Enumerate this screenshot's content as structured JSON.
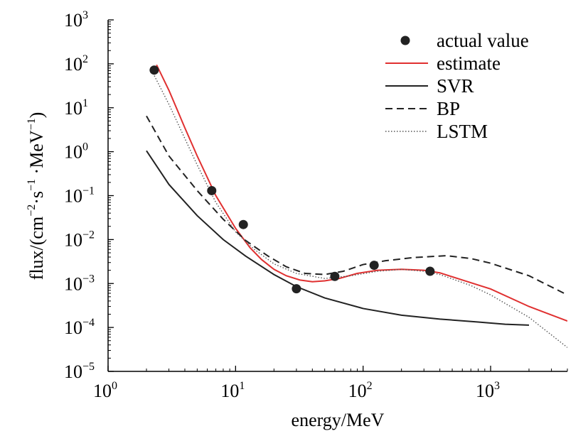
{
  "chart_data": {
    "type": "line",
    "xscale": "log",
    "yscale": "log",
    "xlim": [
      1,
      4000
    ],
    "ylim": [
      1e-05,
      1000
    ],
    "xlabel": "energy/MeV",
    "ylabel": {
      "prefix": "flux/(cm",
      "sup1": "−2",
      "mid1": "·s",
      "sup2": "−1",
      "mid2": " ·MeV",
      "sup3": "−1",
      "suffix": ")"
    },
    "x_ticks": [
      {
        "value": 1,
        "base": "10",
        "exp": "0"
      },
      {
        "value": 10,
        "base": "10",
        "exp": "1"
      },
      {
        "value": 100,
        "base": "10",
        "exp": "2"
      },
      {
        "value": 1000,
        "base": "10",
        "exp": "3"
      }
    ],
    "y_ticks": [
      {
        "value": 1e-05,
        "base": "10",
        "exp": "−5"
      },
      {
        "value": 0.0001,
        "base": "10",
        "exp": "−4"
      },
      {
        "value": 0.001,
        "base": "10",
        "exp": "−3"
      },
      {
        "value": 0.01,
        "base": "10",
        "exp": "−2"
      },
      {
        "value": 0.1,
        "base": "10",
        "exp": "−1"
      },
      {
        "value": 1,
        "base": "10",
        "exp": "0"
      },
      {
        "value": 10,
        "base": "10",
        "exp": "1"
      },
      {
        "value": 100,
        "base": "10",
        "exp": "2"
      },
      {
        "value": 1000,
        "base": "10",
        "exp": "3"
      }
    ],
    "legend_position": "top-right",
    "series": [
      {
        "name": "actual value",
        "kind": "scatter",
        "color": "#222222",
        "points": [
          [
            2.3,
            72
          ],
          [
            6.5,
            0.13
          ],
          [
            11.5,
            0.022
          ],
          [
            30,
            0.00076
          ],
          [
            60,
            0.00145
          ],
          [
            122,
            0.0026
          ],
          [
            335,
            0.0019
          ]
        ]
      },
      {
        "name": "estimate",
        "kind": "line",
        "color": "#e03030",
        "dash": "solid",
        "points": [
          [
            2.4,
            95
          ],
          [
            3,
            25
          ],
          [
            4,
            3.5
          ],
          [
            5,
            0.8
          ],
          [
            7,
            0.1
          ],
          [
            10,
            0.018
          ],
          [
            13,
            0.0065
          ],
          [
            16,
            0.0035
          ],
          [
            20,
            0.0021
          ],
          [
            25,
            0.0015
          ],
          [
            32,
            0.0012
          ],
          [
            40,
            0.0011
          ],
          [
            50,
            0.00115
          ],
          [
            65,
            0.0013
          ],
          [
            90,
            0.0017
          ],
          [
            130,
            0.002
          ],
          [
            200,
            0.0021
          ],
          [
            300,
            0.002
          ],
          [
            400,
            0.00175
          ],
          [
            600,
            0.0012
          ],
          [
            1000,
            0.00075
          ],
          [
            2000,
            0.0003
          ],
          [
            4000,
            0.00014
          ]
        ]
      },
      {
        "name": "SVR",
        "kind": "line",
        "color": "#222222",
        "dash": "solid",
        "points": [
          [
            2,
            1.05
          ],
          [
            3,
            0.18
          ],
          [
            5,
            0.035
          ],
          [
            8,
            0.01
          ],
          [
            12,
            0.0042
          ],
          [
            20,
            0.0016
          ],
          [
            30,
            0.00085
          ],
          [
            50,
            0.00047
          ],
          [
            100,
            0.00027
          ],
          [
            200,
            0.00019
          ],
          [
            400,
            0.000155
          ],
          [
            800,
            0.000133
          ],
          [
            1300,
            0.000118
          ],
          [
            2000,
            0.000113
          ]
        ]
      },
      {
        "name": "BP",
        "kind": "line",
        "color": "#222222",
        "dash": "dashed",
        "points": [
          [
            2,
            6.5
          ],
          [
            3,
            0.8
          ],
          [
            5,
            0.13
          ],
          [
            8,
            0.029
          ],
          [
            12,
            0.0095
          ],
          [
            18,
            0.0042
          ],
          [
            25,
            0.0024
          ],
          [
            35,
            0.0017
          ],
          [
            50,
            0.0016
          ],
          [
            70,
            0.0019
          ],
          [
            100,
            0.0027
          ],
          [
            150,
            0.0033
          ],
          [
            250,
            0.0039
          ],
          [
            450,
            0.0043
          ],
          [
            700,
            0.0037
          ],
          [
            1000,
            0.0029
          ],
          [
            2000,
            0.0015
          ],
          [
            4000,
            0.00055
          ]
        ]
      },
      {
        "name": "LSTM",
        "kind": "line",
        "color": "#555555",
        "dash": "dotted",
        "points": [
          [
            2.2,
            70
          ],
          [
            3,
            12
          ],
          [
            4,
            2
          ],
          [
            5,
            0.5
          ],
          [
            7,
            0.07
          ],
          [
            10,
            0.015
          ],
          [
            14,
            0.006
          ],
          [
            20,
            0.0028
          ],
          [
            30,
            0.0017
          ],
          [
            50,
            0.0013
          ],
          [
            80,
            0.0015
          ],
          [
            130,
            0.0019
          ],
          [
            200,
            0.0021
          ],
          [
            300,
            0.0019
          ],
          [
            400,
            0.0016
          ],
          [
            700,
            0.0009
          ],
          [
            1000,
            0.00055
          ],
          [
            2000,
            0.00017
          ],
          [
            4000,
            3.5e-05
          ]
        ]
      }
    ]
  }
}
